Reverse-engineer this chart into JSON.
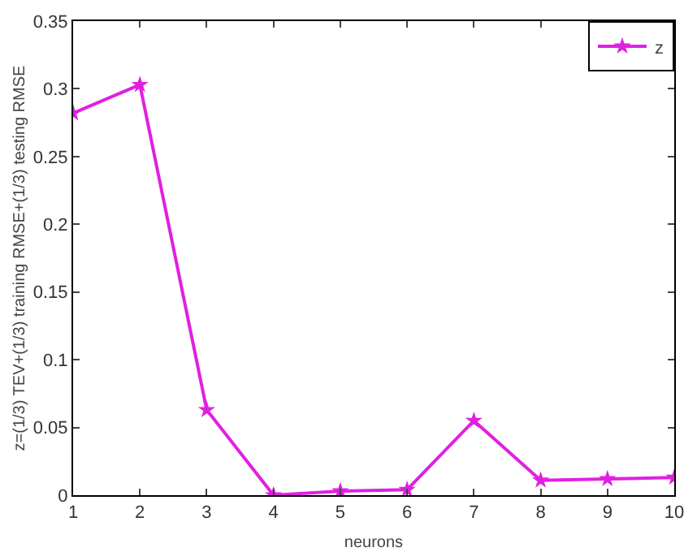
{
  "chart_data": {
    "type": "line",
    "xlabel": "neurons",
    "ylabel": "z=(1/3) TEV+(1/3) training RMSE+(1/3) testing RMSE",
    "x": [
      1,
      2,
      3,
      4,
      5,
      6,
      7,
      8,
      9,
      10
    ],
    "series": [
      {
        "name": "z",
        "color": "#e020e0",
        "values": [
          0.282,
          0.303,
          0.063,
          0.0,
          0.003,
          0.004,
          0.055,
          0.011,
          0.012,
          0.013
        ]
      }
    ],
    "xlim": [
      1,
      10
    ],
    "xticks": [
      1,
      2,
      3,
      4,
      5,
      6,
      7,
      8,
      9,
      10
    ],
    "ylim": [
      0,
      0.35
    ],
    "yticks": [
      0,
      0.05,
      0.1,
      0.15,
      0.2,
      0.25,
      0.3,
      0.35
    ],
    "grid": false,
    "legend": "top right",
    "marker": "star",
    "line_style": "solid"
  }
}
